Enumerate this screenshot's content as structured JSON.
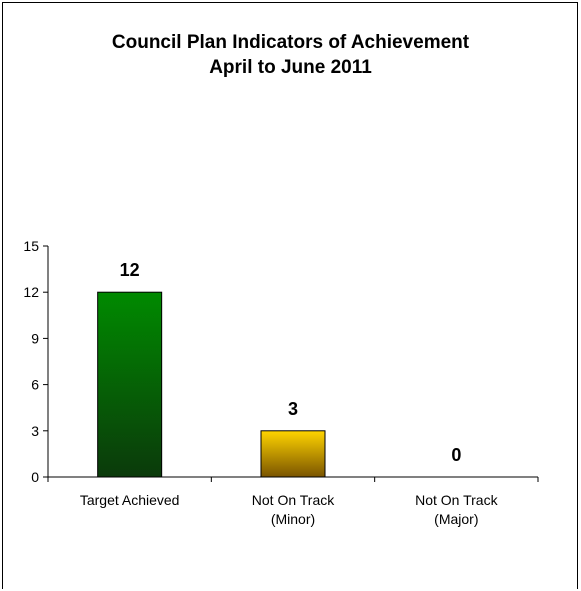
{
  "chart_data": {
    "type": "bar",
    "title_lines": [
      "Council Plan Indicators of Achievement",
      "April to June 2011"
    ],
    "categories": [
      [
        "Target Achieved"
      ],
      [
        "Not On Track",
        "(Minor)"
      ],
      [
        "Not On Track",
        "(Major)"
      ]
    ],
    "values": [
      12,
      3,
      0
    ],
    "data_labels": [
      "12",
      "3",
      "0"
    ],
    "yticks": [
      "0",
      "3",
      "6",
      "9",
      "12",
      "15"
    ],
    "ylim": [
      0,
      15
    ],
    "xlabel": "",
    "ylabel": "",
    "grid": false,
    "legend": "none",
    "colors": [
      {
        "top": "#008a00",
        "bottom": "#0b3a0b"
      },
      {
        "top": "#ffd400",
        "bottom": "#7a5400"
      },
      {
        "top": "#cccccc",
        "bottom": "#666666"
      }
    ]
  }
}
